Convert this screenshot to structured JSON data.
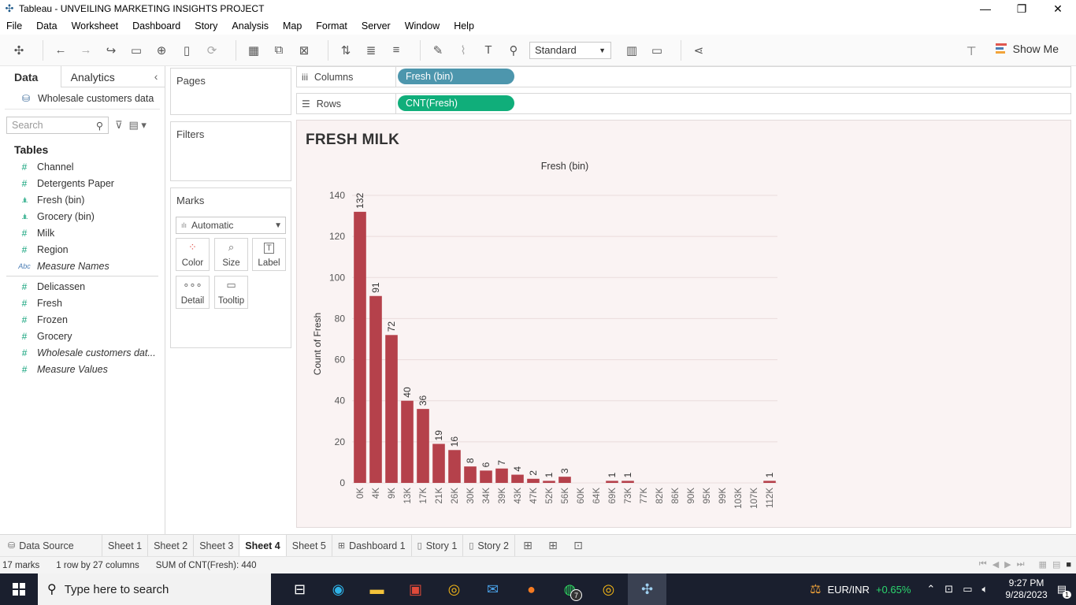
{
  "window": {
    "title": "Tableau - UNVEILING MARKETING INSIGHTS PROJECT"
  },
  "menu": [
    "File",
    "Data",
    "Worksheet",
    "Dashboard",
    "Story",
    "Analysis",
    "Map",
    "Format",
    "Server",
    "Window",
    "Help"
  ],
  "toolbar": {
    "fit_value": "Standard",
    "show_me_label": "Show Me"
  },
  "data_pane": {
    "tabs": [
      "Data",
      "Analytics"
    ],
    "data_source": "Wholesale customers data",
    "search_placeholder": "Search",
    "tables_header": "Tables",
    "fields": [
      {
        "label": "Channel",
        "icon": "#",
        "type": "measure"
      },
      {
        "label": "Detergents Paper",
        "icon": "#",
        "type": "measure"
      },
      {
        "label": "Fresh (bin)",
        "icon": ".ılı.",
        "type": "bin"
      },
      {
        "label": "Grocery (bin)",
        "icon": ".ılı.",
        "type": "bin"
      },
      {
        "label": "Milk",
        "icon": "#",
        "type": "measure"
      },
      {
        "label": "Region",
        "icon": "#",
        "type": "measure"
      },
      {
        "label": "Measure Names",
        "icon": "Abc",
        "type": "abc",
        "italic": true
      }
    ],
    "measures": [
      {
        "label": "Delicassen",
        "icon": "#"
      },
      {
        "label": "Fresh",
        "icon": "#"
      },
      {
        "label": "Frozen",
        "icon": "#"
      },
      {
        "label": "Grocery",
        "icon": "#"
      },
      {
        "label": "Wholesale customers dat...",
        "icon": "#",
        "italic": true
      },
      {
        "label": "Measure Values",
        "icon": "#",
        "italic": true
      }
    ]
  },
  "cards": {
    "pages": "Pages",
    "filters": "Filters",
    "marks": "Marks",
    "mark_type": "Automatic",
    "mark_buttons": [
      "Color",
      "Size",
      "Label",
      "Detail",
      "Tooltip"
    ]
  },
  "shelves": {
    "columns_label": "Columns",
    "columns_pill": "Fresh (bin)",
    "rows_label": "Rows",
    "rows_pill": "CNT(Fresh)",
    "columns_color": "#4d96ad",
    "rows_color": "#10ae7a"
  },
  "sheet": {
    "title": "FRESH MILK"
  },
  "chart_data": {
    "type": "bar",
    "title": "Fresh (bin)",
    "ylabel": "Count of Fresh",
    "bar_color": "#b5414b",
    "categories": [
      "0K",
      "4K",
      "9K",
      "13K",
      "17K",
      "21K",
      "26K",
      "30K",
      "34K",
      "39K",
      "43K",
      "47K",
      "52K",
      "56K",
      "60K",
      "64K",
      "69K",
      "73K",
      "77K",
      "82K",
      "86K",
      "90K",
      "95K",
      "99K",
      "103K",
      "107K",
      "112K"
    ],
    "values": [
      132,
      91,
      72,
      40,
      36,
      19,
      16,
      8,
      6,
      7,
      4,
      2,
      1,
      3,
      null,
      null,
      1,
      1,
      null,
      null,
      null,
      null,
      null,
      null,
      null,
      null,
      1
    ],
    "yticks": [
      0,
      20,
      40,
      60,
      80,
      100,
      120,
      140
    ],
    "ylim": [
      0,
      140
    ],
    "grid": true
  },
  "sheet_tabs": {
    "data_source": "Data Source",
    "tabs": [
      "Sheet 1",
      "Sheet 2",
      "Sheet 3",
      "Sheet 4",
      "Sheet 5",
      "Dashboard 1",
      "Story 1",
      "Story 2"
    ],
    "active": "Sheet 4"
  },
  "status": {
    "marks": "17 marks",
    "dims": "1 row by 27 columns",
    "sum": "SUM of CNT(Fresh): 440"
  },
  "taskbar": {
    "search_placeholder": "Type here to search",
    "fx_pair": "EUR/INR",
    "fx_change": "+0.65%",
    "time": "9:27 PM",
    "date": "9/28/2023",
    "whatsapp_badge": "7",
    "notification_count": "1"
  }
}
